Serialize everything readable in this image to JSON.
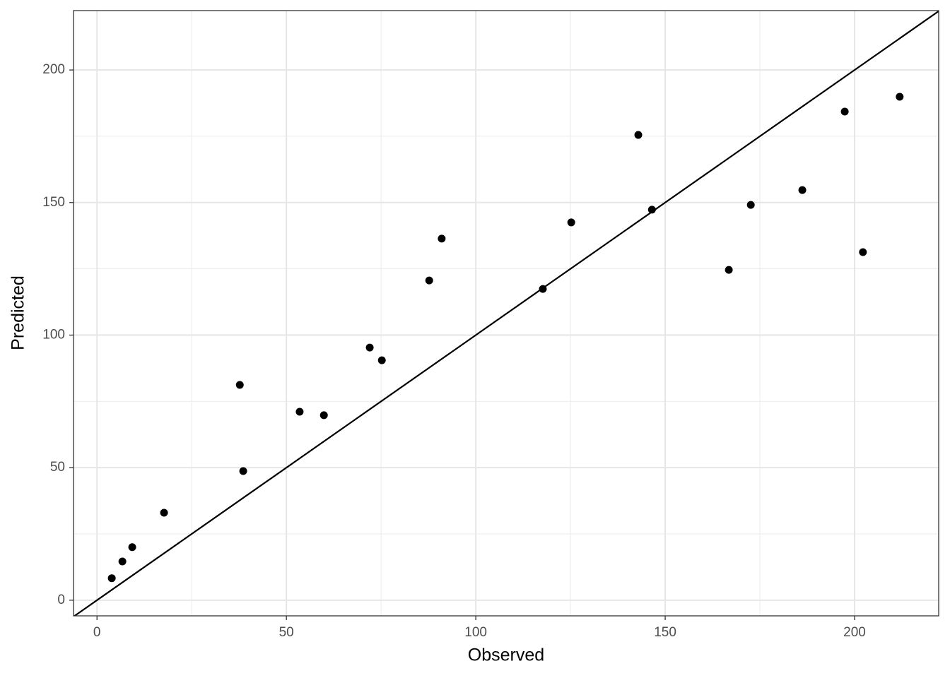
{
  "chart_data": {
    "type": "scatter",
    "x_label": "Observed",
    "y_label": "Predicted",
    "x": [
      3.9,
      6.7,
      9.3,
      17.7,
      37.7,
      38.6,
      53.5,
      59.9,
      72.0,
      75.2,
      87.7,
      91.0,
      117.7,
      125.2,
      142.9,
      146.5,
      166.8,
      172.6,
      186.2,
      197.4,
      202.2,
      211.9
    ],
    "values": [
      8.3,
      14.6,
      20.0,
      33.0,
      81.2,
      48.7,
      71.1,
      69.8,
      95.3,
      90.5,
      120.6,
      136.4,
      117.4,
      142.5,
      175.5,
      147.3,
      124.6,
      149.1,
      154.7,
      184.3,
      131.3,
      189.9
    ],
    "color": "#000000",
    "xlim": [
      -6.2,
      222.2
    ],
    "ylim": [
      -5.9,
      222.4
    ],
    "xticks": [
      0,
      50,
      100,
      150,
      200
    ],
    "yticks": [
      0,
      50,
      100,
      150,
      200
    ],
    "x_minor_grid": [
      25,
      75,
      125,
      175
    ],
    "y_minor_grid": [
      25,
      75,
      125,
      175
    ],
    "grid": true,
    "reference_line": {
      "slope": 1,
      "intercept": 0,
      "color": "#000000"
    }
  }
}
